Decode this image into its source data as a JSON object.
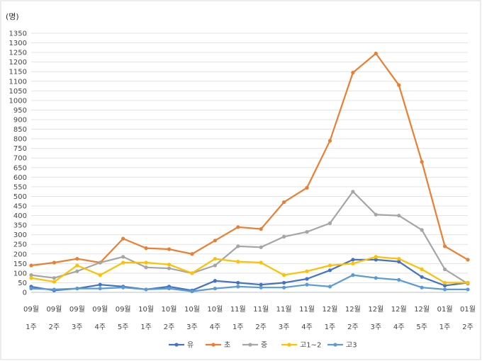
{
  "chart_data": {
    "type": "line",
    "unit_label": "(명)",
    "categories": [
      [
        "09월",
        "1주"
      ],
      [
        "09월",
        "2주"
      ],
      [
        "09월",
        "3주"
      ],
      [
        "09월",
        "4주"
      ],
      [
        "09월",
        "5주"
      ],
      [
        "10월",
        "1주"
      ],
      [
        "10월",
        "2주"
      ],
      [
        "10월",
        "3주"
      ],
      [
        "10월",
        "4주"
      ],
      [
        "11월",
        "1주"
      ],
      [
        "11월",
        "2주"
      ],
      [
        "11월",
        "3주"
      ],
      [
        "11월",
        "4주"
      ],
      [
        "12월",
        "1주"
      ],
      [
        "12월",
        "2주"
      ],
      [
        "12월",
        "3주"
      ],
      [
        "12월",
        "4주"
      ],
      [
        "12월",
        "5주"
      ],
      [
        "01월",
        "1주"
      ],
      [
        "01월",
        "2주"
      ]
    ],
    "ylim": [
      0,
      1350
    ],
    "ytick_step": 50,
    "grid": true,
    "legend_position": "bottom",
    "series": [
      {
        "name": "유",
        "color": "#4472c4",
        "values": [
          30,
          10,
          20,
          40,
          30,
          15,
          30,
          10,
          60,
          50,
          40,
          50,
          70,
          115,
          170,
          170,
          160,
          80,
          35,
          50
        ]
      },
      {
        "name": "초",
        "color": "#ed7d31",
        "values": [
          140,
          155,
          175,
          155,
          280,
          230,
          225,
          200,
          270,
          340,
          330,
          470,
          545,
          790,
          1145,
          1245,
          1080,
          680,
          240,
          170
        ]
      },
      {
        "name": "중",
        "color": "#a5a5a5",
        "values": [
          90,
          75,
          110,
          155,
          185,
          130,
          125,
          100,
          140,
          240,
          235,
          290,
          315,
          360,
          525,
          405,
          400,
          325,
          120,
          45
        ]
      },
      {
        "name": "고1~2",
        "color": "#ffc000",
        "values": [
          75,
          55,
          140,
          90,
          155,
          155,
          145,
          100,
          175,
          160,
          155,
          90,
          110,
          140,
          150,
          185,
          175,
          120,
          50,
          50
        ]
      },
      {
        "name": "고3",
        "color": "#5b9bd5",
        "values": [
          20,
          15,
          20,
          20,
          25,
          15,
          20,
          5,
          20,
          30,
          25,
          25,
          40,
          30,
          90,
          75,
          65,
          25,
          15,
          15
        ]
      }
    ]
  }
}
